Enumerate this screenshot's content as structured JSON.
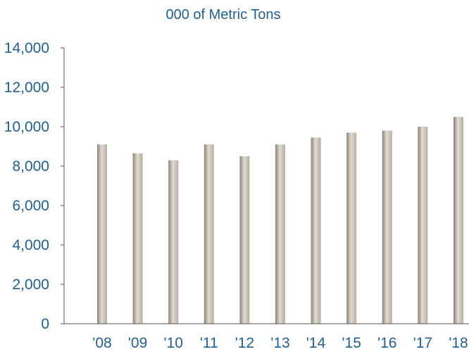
{
  "chart_data": {
    "type": "bar",
    "title": "000 of Metric Tons",
    "categories": [
      "'08",
      "'09",
      "'10",
      "'11",
      "'12",
      "'13",
      "'14",
      "'15",
      "'16",
      "'17",
      "'18"
    ],
    "values": [
      9100,
      8650,
      8300,
      9100,
      8500,
      9100,
      9450,
      9700,
      9800,
      10000,
      10500
    ],
    "ylim": [
      0,
      14000
    ],
    "y_ticks": [
      "0",
      "2,000",
      "4,000",
      "6,000",
      "8,000",
      "10,000",
      "12,000",
      "14,000"
    ],
    "grid": false,
    "colors": {
      "text": "#1f5f96",
      "axis": "#555555",
      "bar_dark": "#8d8172",
      "bar_light": "#e1dbd2",
      "bar_mid": "#b8ae9f"
    }
  }
}
